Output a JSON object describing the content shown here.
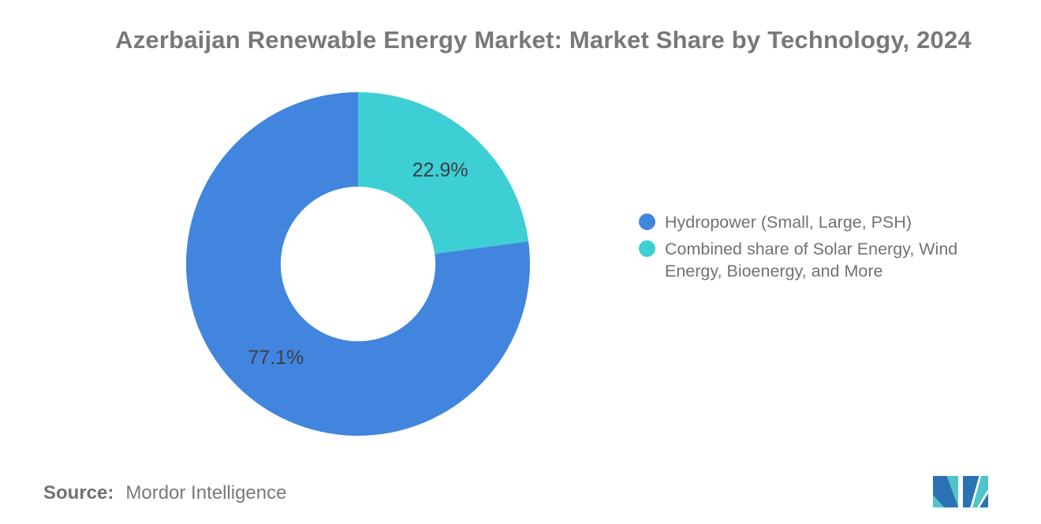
{
  "chart_data": {
    "type": "pie",
    "subtype": "donut",
    "title": "Azerbaijan Renewable Energy Market: Market Share by Technology, 2024",
    "unit": "%",
    "series": [
      {
        "name": "Hydropower (Small, Large, PSH)",
        "value": 77.1,
        "data_label": "77.1%",
        "color": "#4285de"
      },
      {
        "name": "Combined share of Solar Energy, Wind Energy, Bioenergy, and More",
        "value": 22.9,
        "data_label": "22.9%",
        "color": "#3dcfd4"
      }
    ],
    "slice_order_clockwise_from_top": [
      "Combined share of Solar Energy, Wind Energy, Bioenergy, and More",
      "Hydropower (Small, Large, PSH)"
    ],
    "start_angle_deg": -90,
    "inner_radius_ratio": 0.45,
    "legend_position": "right",
    "data_label_color": "#3b4046",
    "background_color": "#ffffff"
  },
  "legend": {
    "items": [
      {
        "label": "Hydropower (Small, Large, PSH)"
      },
      {
        "label": "Combined share of Solar Energy, Wind Energy, Bioenergy, and More"
      }
    ]
  },
  "source": {
    "label": "Source:",
    "value": "Mordor Intelligence"
  },
  "logo": {
    "name": "mordor-intelligence-logo",
    "teal": "#50c4c9",
    "blue": "#2b72b5"
  }
}
